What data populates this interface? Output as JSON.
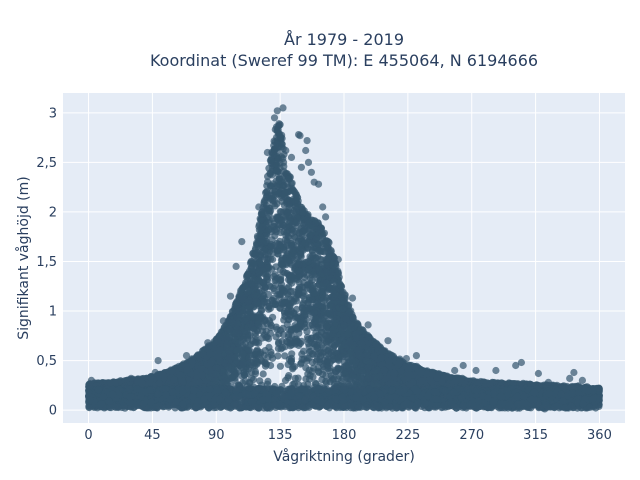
{
  "chart_data": {
    "type": "scatter",
    "title_line1": "År 1979 - 2019",
    "title_line2": "Koordinat (Sweref 99 TM): E 455064, N 6194666",
    "xlabel": "Vågriktning (grader)",
    "ylabel": "Signifikant våghöjd (m)",
    "xlim": [
      -18,
      378
    ],
    "ylim": [
      -0.13,
      3.2
    ],
    "x_ticks": [
      0,
      45,
      90,
      135,
      180,
      225,
      270,
      315,
      360
    ],
    "x_tick_labels": [
      "0",
      "45",
      "90",
      "135",
      "180",
      "225",
      "270",
      "315",
      "360"
    ],
    "y_ticks": [
      0,
      0.5,
      1,
      1.5,
      2,
      2.5,
      3
    ],
    "y_tick_labels": [
      "0",
      "0,5",
      "1",
      "1,5",
      "2",
      "2,5",
      "3"
    ],
    "grid": true,
    "legend": "none",
    "marker_color": "#34566e",
    "plot_bg": "#e5ecf6",
    "envelope": {
      "x": [
        0,
        20,
        45,
        60,
        75,
        90,
        100,
        110,
        118,
        125,
        130,
        133,
        136,
        140,
        145,
        150,
        155,
        160,
        165,
        170,
        175,
        180,
        185,
        190,
        200,
        210,
        225,
        240,
        255,
        270,
        285,
        300,
        315,
        330,
        345,
        360
      ],
      "y_max": [
        0.25,
        0.27,
        0.32,
        0.4,
        0.52,
        0.7,
        0.95,
        1.3,
        1.7,
        2.3,
        2.75,
        3.0,
        2.85,
        2.5,
        2.25,
        2.1,
        2.0,
        1.95,
        1.85,
        1.7,
        1.45,
        1.2,
        1.0,
        0.85,
        0.7,
        0.58,
        0.45,
        0.38,
        0.32,
        0.28,
        0.26,
        0.25,
        0.24,
        0.23,
        0.22,
        0.2
      ]
    },
    "outlier_points": [
      {
        "x": 2,
        "y": 0.3
      },
      {
        "x": 30,
        "y": 0.32
      },
      {
        "x": 47,
        "y": 0.38
      },
      {
        "x": 49,
        "y": 0.5
      },
      {
        "x": 69,
        "y": 0.55
      },
      {
        "x": 84,
        "y": 0.68
      },
      {
        "x": 95,
        "y": 0.9
      },
      {
        "x": 100,
        "y": 1.15
      },
      {
        "x": 104,
        "y": 1.45
      },
      {
        "x": 108,
        "y": 1.7
      },
      {
        "x": 120,
        "y": 2.05
      },
      {
        "x": 126,
        "y": 2.6
      },
      {
        "x": 131,
        "y": 2.95
      },
      {
        "x": 133,
        "y": 3.02
      },
      {
        "x": 137,
        "y": 3.05
      },
      {
        "x": 135,
        "y": 2.88
      },
      {
        "x": 139,
        "y": 2.62
      },
      {
        "x": 143,
        "y": 2.55
      },
      {
        "x": 148,
        "y": 2.78
      },
      {
        "x": 149,
        "y": 2.77
      },
      {
        "x": 150,
        "y": 2.45
      },
      {
        "x": 154,
        "y": 2.72
      },
      {
        "x": 153,
        "y": 2.62
      },
      {
        "x": 155,
        "y": 2.5
      },
      {
        "x": 157,
        "y": 2.4
      },
      {
        "x": 159,
        "y": 2.3
      },
      {
        "x": 162,
        "y": 2.28
      },
      {
        "x": 165,
        "y": 2.05
      },
      {
        "x": 167,
        "y": 1.95
      },
      {
        "x": 171,
        "y": 1.6
      },
      {
        "x": 176,
        "y": 1.52
      },
      {
        "x": 186,
        "y": 1.13
      },
      {
        "x": 197,
        "y": 0.86
      },
      {
        "x": 211,
        "y": 0.7
      },
      {
        "x": 224,
        "y": 0.52
      },
      {
        "x": 231,
        "y": 0.55
      },
      {
        "x": 258,
        "y": 0.4
      },
      {
        "x": 264,
        "y": 0.45
      },
      {
        "x": 273,
        "y": 0.4
      },
      {
        "x": 287,
        "y": 0.4
      },
      {
        "x": 301,
        "y": 0.45
      },
      {
        "x": 305,
        "y": 0.48
      },
      {
        "x": 317,
        "y": 0.37
      },
      {
        "x": 324,
        "y": 0.28
      },
      {
        "x": 339,
        "y": 0.32
      },
      {
        "x": 342,
        "y": 0.38
      },
      {
        "x": 348,
        "y": 0.3
      }
    ]
  }
}
